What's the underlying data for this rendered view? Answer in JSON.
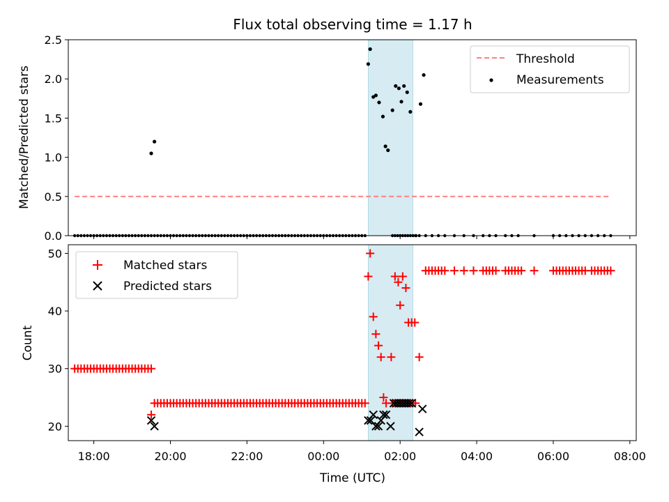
{
  "chart_data": [
    {
      "type": "scatter",
      "title": "Flux total observing time = 1.17 h",
      "xlabel": "",
      "ylabel": "Matched/Predicted stars",
      "xlim": [
        "17:20",
        "08:10"
      ],
      "ylim": [
        0,
        2.5
      ],
      "yticks": [
        "0.0",
        "0.5",
        "1.0",
        "1.5",
        "2.0",
        "2.5"
      ],
      "shaded_region": {
        "start": "01:10",
        "end": "02:20"
      },
      "legend": {
        "placement": "upper right",
        "threshold_label": "Threshold",
        "measurements_label": "Measurements"
      },
      "threshold": {
        "value": 0.5,
        "x_start": "17:30",
        "x_end": "07:30",
        "color": "#ff7f7f"
      },
      "series": [
        {
          "name": "Measurements",
          "color": "#000000",
          "points": [
            [
              "19:30",
              1.05
            ],
            [
              "19:35",
              1.2
            ],
            [
              "01:10",
              2.19
            ],
            [
              "01:13",
              2.38
            ],
            [
              "01:18",
              1.77
            ],
            [
              "01:22",
              1.79
            ],
            [
              "01:27",
              1.7
            ],
            [
              "01:33",
              1.52
            ],
            [
              "01:37",
              1.14
            ],
            [
              "01:41",
              1.09
            ],
            [
              "01:48",
              1.6
            ],
            [
              "01:53",
              1.91
            ],
            [
              "01:58",
              1.88
            ],
            [
              "02:02",
              1.71
            ],
            [
              "02:06",
              1.91
            ],
            [
              "02:11",
              1.83
            ],
            [
              "02:16",
              1.58
            ],
            [
              "02:32",
              1.68
            ],
            [
              "02:37",
              2.05
            ]
          ]
        }
      ]
    },
    {
      "type": "scatter",
      "title": "",
      "xlabel": "Time (UTC)",
      "ylabel": "Count",
      "xlim": [
        "17:20",
        "08:10"
      ],
      "ylim": [
        17.5,
        51.5
      ],
      "yticks": [
        "20",
        "30",
        "40",
        "50"
      ],
      "xticks": [
        "18:00",
        "20:00",
        "22:00",
        "00:00",
        "02:00",
        "04:00",
        "06:00",
        "08:00"
      ],
      "shaded_region": {
        "start": "01:10",
        "end": "02:20"
      },
      "legend": {
        "placement": "upper left"
      },
      "series": [
        {
          "name": "Matched stars",
          "marker": "+",
          "color": "#ff0000",
          "points": [
            [
              "19:30",
              22
            ],
            [
              "01:10",
              46
            ],
            [
              "01:13",
              50
            ],
            [
              "01:18",
              39
            ],
            [
              "01:22",
              36
            ],
            [
              "01:26",
              34
            ],
            [
              "01:30",
              32
            ],
            [
              "01:34",
              25
            ],
            [
              "01:38",
              24
            ],
            [
              "01:46",
              32
            ],
            [
              "01:52",
              46
            ],
            [
              "01:57",
              45
            ],
            [
              "02:00",
              41
            ],
            [
              "02:04",
              46
            ],
            [
              "02:09",
              44
            ],
            [
              "02:13",
              38
            ],
            [
              "02:18",
              38
            ],
            [
              "02:23",
              38
            ],
            [
              "02:30",
              32
            ]
          ],
          "runs": [
            {
              "from": "17:30",
              "to": "19:30",
              "step_min": 5,
              "value": 30
            },
            {
              "from": "19:35",
              "to": "01:05",
              "step_min": 5,
              "value": 24
            },
            {
              "from": "01:48",
              "to": "02:25",
              "step_min": 4,
              "value": 24
            },
            {
              "from": "02:40",
              "to": "03:10",
              "step_min": 5,
              "value": 47
            },
            {
              "from": "03:25",
              "to": "03:25",
              "step_min": 5,
              "value": 47
            },
            {
              "from": "03:40",
              "to": "03:40",
              "step_min": 5,
              "value": 47
            },
            {
              "from": "03:55",
              "to": "03:55",
              "step_min": 5,
              "value": 47
            },
            {
              "from": "04:10",
              "to": "04:30",
              "step_min": 5,
              "value": 47
            },
            {
              "from": "04:45",
              "to": "05:10",
              "step_min": 5,
              "value": 47
            },
            {
              "from": "05:30",
              "to": "05:30",
              "step_min": 5,
              "value": 47
            },
            {
              "from": "06:00",
              "to": "06:50",
              "step_min": 5,
              "value": 47
            },
            {
              "from": "07:00",
              "to": "07:30",
              "step_min": 5,
              "value": 47
            }
          ]
        },
        {
          "name": "Predicted stars",
          "marker": "x",
          "color": "#000000",
          "points": [
            [
              "19:30",
              21
            ],
            [
              "19:35",
              20
            ],
            [
              "01:10",
              21
            ],
            [
              "01:14",
              21
            ],
            [
              "01:18",
              22
            ],
            [
              "01:22",
              20
            ],
            [
              "01:26",
              20
            ],
            [
              "01:30",
              21
            ],
            [
              "01:34",
              22
            ],
            [
              "01:38",
              22
            ],
            [
              "01:45",
              20
            ],
            [
              "01:50",
              24
            ],
            [
              "01:54",
              24
            ],
            [
              "01:58",
              24
            ],
            [
              "02:02",
              24
            ],
            [
              "02:06",
              24
            ],
            [
              "02:10",
              24
            ],
            [
              "02:14",
              24
            ],
            [
              "02:18",
              24
            ],
            [
              "02:30",
              19
            ],
            [
              "02:35",
              23
            ]
          ]
        }
      ]
    }
  ]
}
